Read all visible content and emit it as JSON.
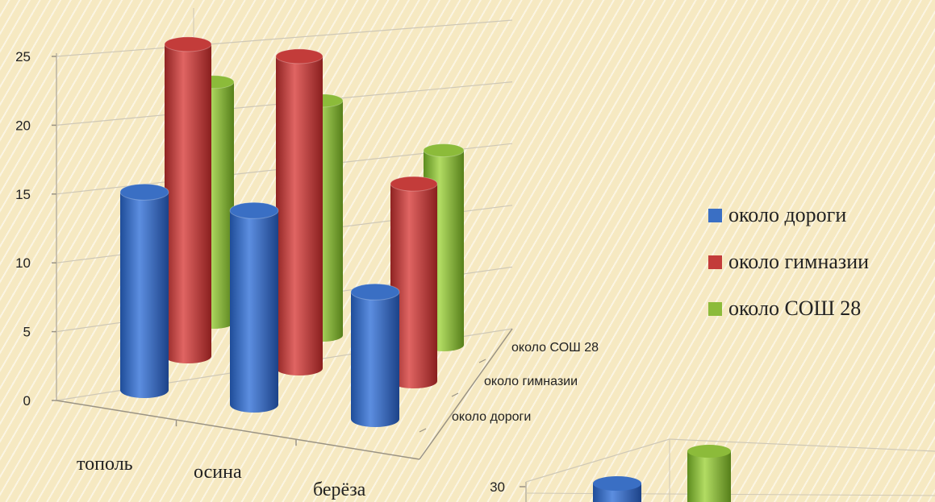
{
  "chart_data": [
    {
      "type": "bar",
      "variant": "3d-cylinder",
      "title": "",
      "categories": [
        "тополь",
        "осина",
        "берёза"
      ],
      "series": [
        {
          "name": "около дороги",
          "values": [
            14.8,
            14.5,
            9.5
          ],
          "color": "#3a6fc4"
        },
        {
          "name": "около гимназии",
          "values": [
            24.5,
            24.5,
            15.5
          ],
          "color": "#c33c3a"
        },
        {
          "name": "около СОШ 28",
          "values": [
            21,
            20.5,
            17
          ],
          "color": "#8cbb3a"
        }
      ],
      "depth_labels": [
        "около СОШ 28",
        "около гимназии",
        "около дороги"
      ],
      "ylim": [
        0,
        25
      ],
      "yticks": [
        "0",
        "5",
        "10",
        "15",
        "20",
        "25"
      ],
      "grid": true,
      "legend_position": "right"
    },
    {
      "type": "bar",
      "variant": "3d-cylinder",
      "partially_visible": true,
      "yticks": [
        "30"
      ]
    }
  ]
}
